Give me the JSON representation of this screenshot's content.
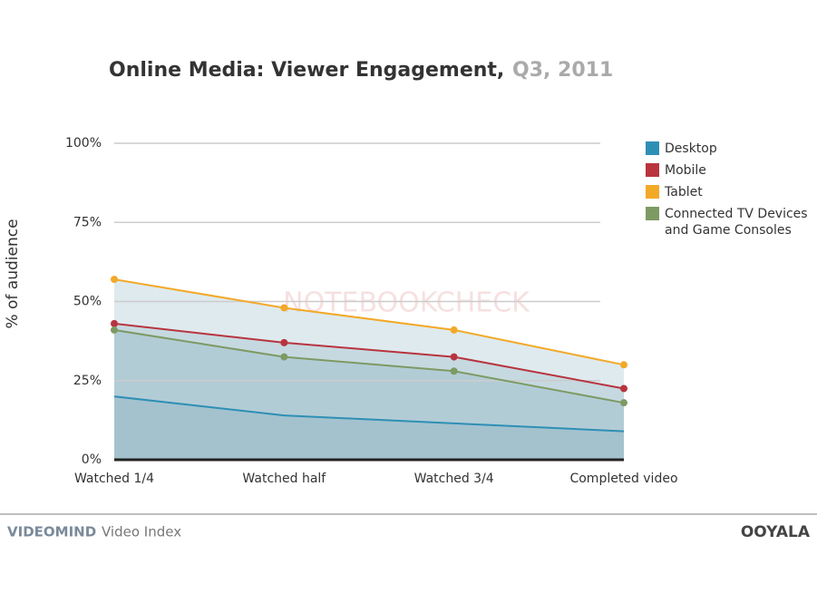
{
  "chart_data": {
    "type": "line",
    "title": "Online Media: Viewer Engagement,",
    "subtitle": "Q3, 2011",
    "y_label": "% of audience",
    "watermark": "NOTEBOOKCHECK",
    "categories": [
      "Watched 1/4",
      "Watched half",
      "Watched 3/4",
      "Completed video"
    ],
    "series": [
      {
        "name": "Desktop",
        "color": "#2e8fb5",
        "marker": false,
        "values": [
          20,
          14,
          11.5,
          9
        ]
      },
      {
        "name": "Mobile",
        "color": "#b8343f",
        "marker": true,
        "values": [
          43,
          37,
          32.5,
          22.5
        ]
      },
      {
        "name": "Tablet",
        "color": "#f2a928",
        "marker": true,
        "values": [
          57,
          48,
          41,
          30
        ]
      },
      {
        "name": "Connected TV Devices and Game Consoles",
        "color": "#7d9a63",
        "marker": true,
        "values": [
          41,
          32.5,
          28,
          18
        ]
      }
    ],
    "area_fill": "#6f9fb3",
    "ylim": [
      0,
      100
    ],
    "yticks": [
      {
        "value": 0,
        "label": "0%"
      },
      {
        "value": 25,
        "label": "25%"
      },
      {
        "value": 50,
        "label": "50%"
      },
      {
        "value": 75,
        "label": "75%"
      },
      {
        "value": 100,
        "label": "100%"
      }
    ],
    "grid": true,
    "legend": "right"
  },
  "footer": {
    "brand": "VIDEOMIND",
    "label": "Video Index",
    "logo": "OOYALA"
  }
}
